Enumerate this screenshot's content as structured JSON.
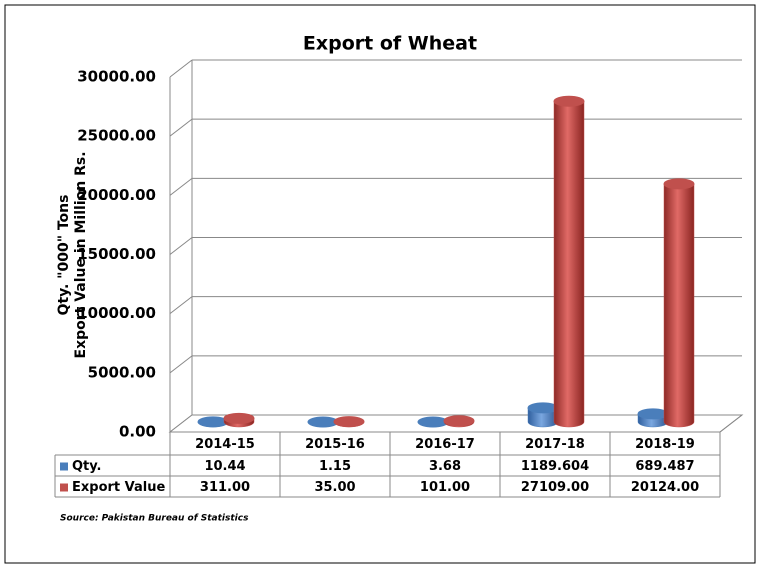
{
  "chart_data": {
    "type": "bar",
    "title": "Export of Wheat",
    "ylabel": [
      "Qty. \"000\" Tons",
      "Export Value in Million Rs."
    ],
    "categories": [
      "2014-15",
      "2015-16",
      "2016-17",
      "2017-18",
      "2018-19"
    ],
    "series": [
      {
        "name": "Qty.",
        "color": "#4a7ebb",
        "values": [
          10.44,
          1.15,
          3.68,
          1189.604,
          689.487
        ]
      },
      {
        "name": "Export Value",
        "color": "#c0504d",
        "values": [
          311.0,
          35.0,
          101.0,
          27109.0,
          20124.0
        ],
        "value_labels": [
          "311.00",
          "35.00",
          "101.00",
          "27109.00",
          "20124.00"
        ]
      }
    ],
    "ylim": [
      0,
      30000
    ],
    "yticks": [
      {
        "value": 0,
        "label": "0.00"
      },
      {
        "value": 5000,
        "label": "5000.00"
      },
      {
        "value": 10000,
        "label": "10000.00"
      },
      {
        "value": 15000,
        "label": "15000.00"
      },
      {
        "value": 20000,
        "label": "20000.00"
      },
      {
        "value": 25000,
        "label": "25000.00"
      },
      {
        "value": 30000,
        "label": "30000.00"
      }
    ],
    "grid": true,
    "source": "Source: Pakistan Bureau of Statistics"
  }
}
